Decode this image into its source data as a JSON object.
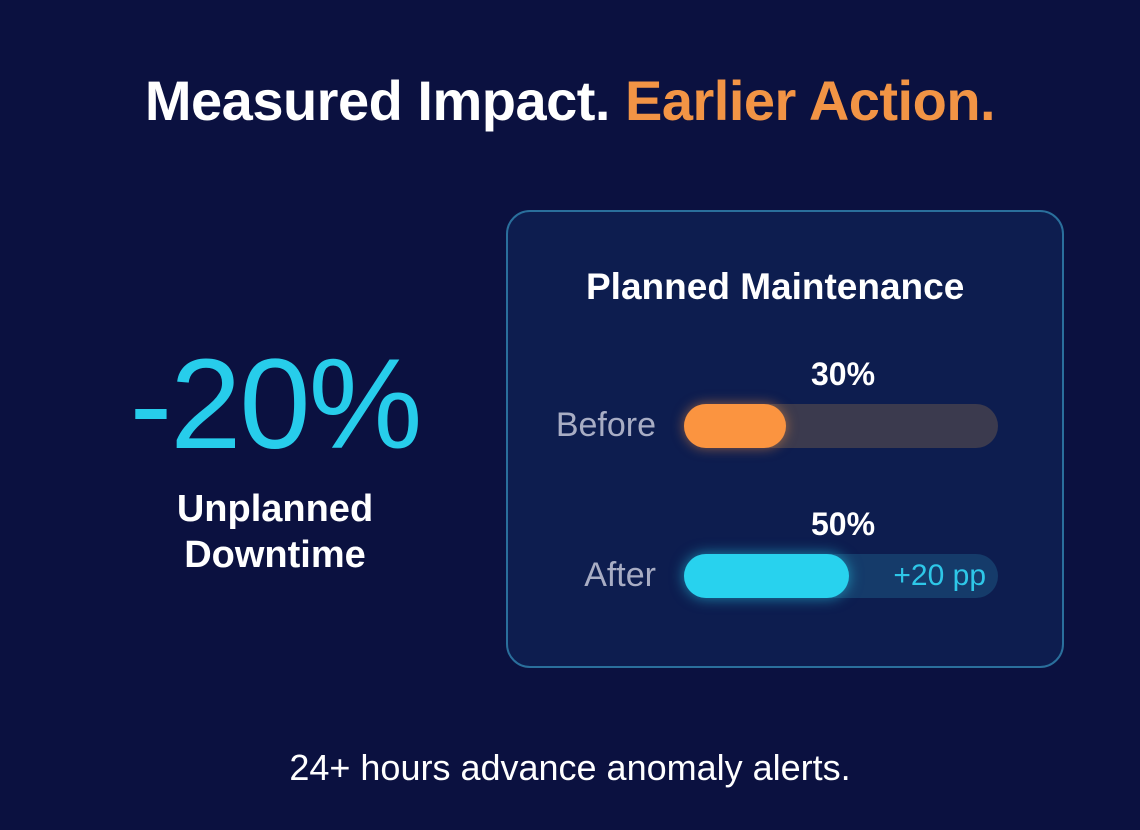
{
  "headline": {
    "part1": "Measured Impact.",
    "part2": "Earlier Action."
  },
  "kpi": {
    "value": "-20%",
    "label_line1": "Unplanned",
    "label_line2": "Downtime"
  },
  "chart_data": {
    "type": "bar",
    "title": "Planned Maintenance",
    "categories": [
      "Before",
      "After"
    ],
    "values": [
      30,
      50
    ],
    "value_labels": [
      "30%",
      "50%"
    ],
    "ylim": [
      0,
      100
    ],
    "annotations": [
      "+20 pp"
    ],
    "colors": [
      "#fb9440",
      "#28d2ee"
    ]
  },
  "footer": {
    "text": "24+ hours advance anomaly alerts."
  },
  "colors": {
    "background": "#0b1140",
    "accent_orange": "#f29445",
    "accent_cyan": "#27cdeb"
  }
}
